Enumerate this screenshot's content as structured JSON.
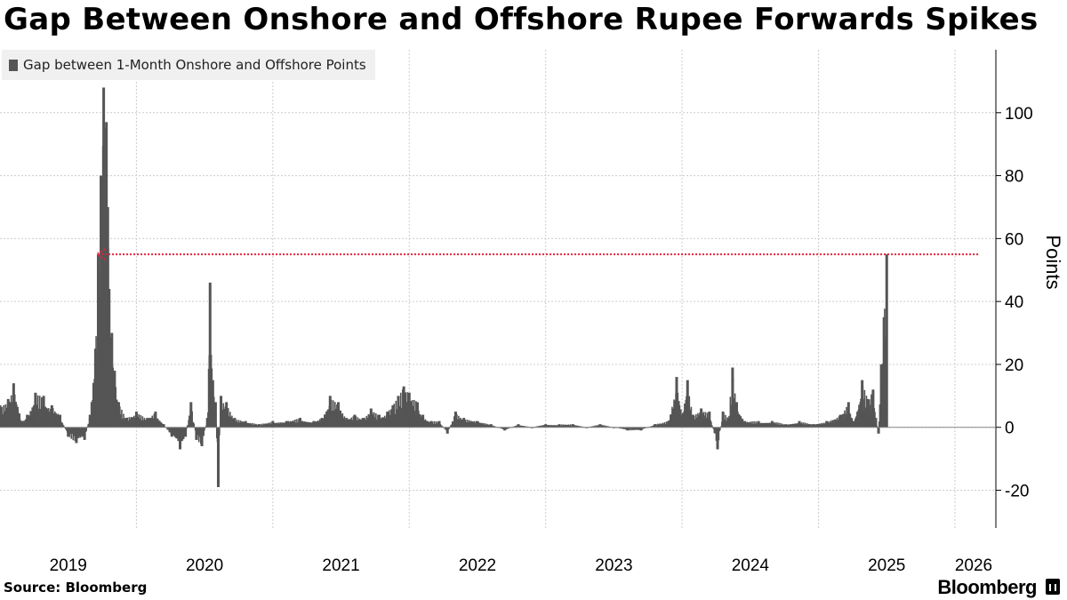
{
  "title": "Gap Between Onshore and Offshore Rupee Forwards Spikes",
  "source": "Source: Bloomberg",
  "brand": "Bloomberg",
  "colors": {
    "bar": "#555555",
    "arrow": "#e8203b",
    "grid": "#cccccc"
  },
  "chart_data": {
    "type": "bar",
    "title": "Gap Between Onshore and Offshore Rupee Forwards Spikes",
    "ylabel": "Points",
    "xlabel": "",
    "ylim": [
      -32,
      120
    ],
    "yticks": [
      -20,
      0,
      20,
      40,
      60,
      80,
      100
    ],
    "xlim": [
      2019.0,
      2026.3
    ],
    "xticks": [
      "2019",
      "2020",
      "2021",
      "2022",
      "2023",
      "2024",
      "2025",
      "2026"
    ],
    "legend": "Gap between 1-Month Onshore and Offshore Points",
    "grid": true,
    "annotation": {
      "type": "arrow",
      "from": [
        2026.17,
        55
      ],
      "to": [
        2019.71,
        55
      ],
      "description": "dotted red arrow at 55 points"
    },
    "points": [
      [
        2019.0,
        7
      ],
      [
        2019.06,
        9
      ],
      [
        2019.1,
        14
      ],
      [
        2019.16,
        2
      ],
      [
        2019.2,
        4
      ],
      [
        2019.26,
        11
      ],
      [
        2019.32,
        10
      ],
      [
        2019.38,
        7
      ],
      [
        2019.44,
        4
      ],
      [
        2019.5,
        -3
      ],
      [
        2019.56,
        -5
      ],
      [
        2019.62,
        -4
      ],
      [
        2019.66,
        4
      ],
      [
        2019.7,
        25
      ],
      [
        2019.72,
        55
      ],
      [
        2019.74,
        80
      ],
      [
        2019.76,
        108
      ],
      [
        2019.77,
        95
      ],
      [
        2019.78,
        97
      ],
      [
        2019.79,
        70
      ],
      [
        2019.8,
        44
      ],
      [
        2019.82,
        30
      ],
      [
        2019.84,
        18
      ],
      [
        2019.87,
        8
      ],
      [
        2019.92,
        3
      ],
      [
        2020.0,
        5
      ],
      [
        2020.08,
        3
      ],
      [
        2020.14,
        5
      ],
      [
        2020.2,
        1
      ],
      [
        2020.26,
        -3
      ],
      [
        2020.32,
        -7
      ],
      [
        2020.36,
        -3
      ],
      [
        2020.4,
        8
      ],
      [
        2020.44,
        -4
      ],
      [
        2020.48,
        -6
      ],
      [
        2020.52,
        3
      ],
      [
        2020.54,
        46
      ],
      [
        2020.56,
        15
      ],
      [
        2020.58,
        8
      ],
      [
        2020.6,
        -19
      ],
      [
        2020.62,
        10
      ],
      [
        2020.66,
        8
      ],
      [
        2020.72,
        3
      ],
      [
        2020.8,
        2
      ],
      [
        2020.9,
        1
      ],
      [
        2021.0,
        2
      ],
      [
        2021.1,
        2
      ],
      [
        2021.2,
        3
      ],
      [
        2021.3,
        2
      ],
      [
        2021.36,
        3
      ],
      [
        2021.42,
        10
      ],
      [
        2021.48,
        8
      ],
      [
        2021.54,
        3
      ],
      [
        2021.6,
        4
      ],
      [
        2021.66,
        3
      ],
      [
        2021.72,
        6
      ],
      [
        2021.78,
        4
      ],
      [
        2021.84,
        5
      ],
      [
        2021.88,
        7
      ],
      [
        2021.92,
        10
      ],
      [
        2021.96,
        13
      ],
      [
        2022.0,
        11
      ],
      [
        2022.06,
        8
      ],
      [
        2022.1,
        4
      ],
      [
        2022.16,
        2
      ],
      [
        2022.22,
        2
      ],
      [
        2022.28,
        -2
      ],
      [
        2022.34,
        5
      ],
      [
        2022.4,
        3
      ],
      [
        2022.5,
        2
      ],
      [
        2022.6,
        1
      ],
      [
        2022.7,
        -1
      ],
      [
        2022.8,
        1
      ],
      [
        2022.9,
        0
      ],
      [
        2023.0,
        1
      ],
      [
        2023.1,
        1
      ],
      [
        2023.2,
        1
      ],
      [
        2023.3,
        0
      ],
      [
        2023.4,
        1
      ],
      [
        2023.5,
        0
      ],
      [
        2023.6,
        -1
      ],
      [
        2023.7,
        -1
      ],
      [
        2023.8,
        1
      ],
      [
        2023.9,
        2
      ],
      [
        2023.96,
        16
      ],
      [
        2024.0,
        4
      ],
      [
        2024.04,
        15
      ],
      [
        2024.08,
        4
      ],
      [
        2024.14,
        6
      ],
      [
        2024.2,
        5
      ],
      [
        2024.26,
        -7
      ],
      [
        2024.3,
        5
      ],
      [
        2024.34,
        3
      ],
      [
        2024.37,
        19
      ],
      [
        2024.4,
        8
      ],
      [
        2024.46,
        2
      ],
      [
        2024.56,
        2
      ],
      [
        2024.66,
        2
      ],
      [
        2024.76,
        1
      ],
      [
        2024.86,
        2
      ],
      [
        2024.96,
        1
      ],
      [
        2025.06,
        2
      ],
      [
        2025.16,
        4
      ],
      [
        2025.22,
        8
      ],
      [
        2025.26,
        2
      ],
      [
        2025.32,
        15
      ],
      [
        2025.36,
        9
      ],
      [
        2025.4,
        12
      ],
      [
        2025.42,
        3
      ],
      [
        2025.44,
        -2
      ],
      [
        2025.46,
        20
      ],
      [
        2025.48,
        35
      ],
      [
        2025.5,
        55
      ]
    ]
  }
}
